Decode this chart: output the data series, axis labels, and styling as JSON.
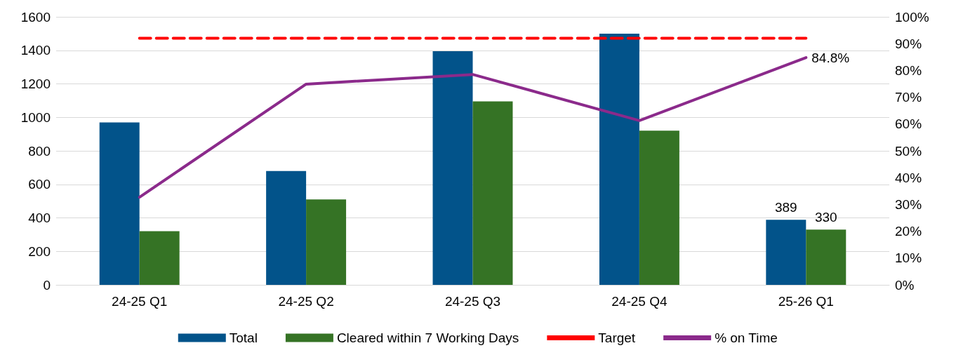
{
  "chart_data": {
    "type": "bar",
    "categories": [
      "24-25 Q1",
      "24-25 Q2",
      "24-25 Q3",
      "24-25 Q4",
      "25-26 Q1"
    ],
    "series": [
      {
        "name": "Total",
        "color": "#02538a",
        "values": [
          970,
          680,
          1395,
          1500,
          389
        ],
        "value_labels": [
          null,
          null,
          null,
          null,
          "389"
        ]
      },
      {
        "name": "Cleared within 7 Working Days",
        "color": "#357325",
        "values": [
          320,
          510,
          1095,
          920,
          330
        ],
        "value_labels": [
          null,
          null,
          null,
          null,
          "330"
        ]
      },
      {
        "name": "Target",
        "type": "line",
        "axis": "y2",
        "color": "#ff0000",
        "line_style": "dashed",
        "values": [
          92,
          92,
          92,
          92,
          92
        ]
      },
      {
        "name": "% on Time",
        "type": "line",
        "axis": "y2",
        "color": "#8b2a8b",
        "line_style": "solid",
        "values": [
          32.7,
          74.9,
          78.5,
          61.3,
          84.8
        ],
        "value_labels": [
          null,
          null,
          null,
          null,
          "84.8%"
        ]
      }
    ],
    "ylim": [
      0,
      1600
    ],
    "yticks": [
      0,
      200,
      400,
      600,
      800,
      1000,
      1200,
      1400,
      1600
    ],
    "y2lim": [
      0,
      100
    ],
    "y2ticks": [
      {
        "value": 0,
        "label": "0%"
      },
      {
        "value": 10,
        "label": "10%"
      },
      {
        "value": 20,
        "label": "20%"
      },
      {
        "value": 30,
        "label": "30%"
      },
      {
        "value": 40,
        "label": "40%"
      },
      {
        "value": 50,
        "label": "50%"
      },
      {
        "value": 60,
        "label": "60%"
      },
      {
        "value": 70,
        "label": "70%"
      },
      {
        "value": 80,
        "label": "80%"
      },
      {
        "value": 90,
        "label": "90%"
      },
      {
        "value": 100,
        "label": "100%"
      }
    ],
    "grid": "y",
    "legend": "bottom",
    "marker": "none"
  }
}
